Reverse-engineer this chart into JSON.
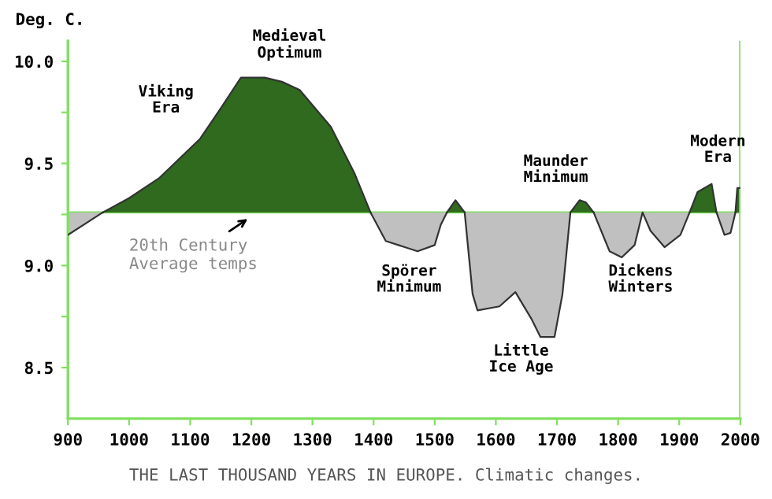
{
  "chart_data": {
    "type": "area",
    "ylabel": "Deg. C.",
    "x": [
      900,
      957,
      1000,
      1050,
      1116,
      1150,
      1183,
      1222,
      1250,
      1279,
      1330,
      1369,
      1395,
      1420,
      1472,
      1500,
      1510,
      1520,
      1534,
      1549,
      1562,
      1570,
      1606,
      1632,
      1658,
      1673,
      1696,
      1709,
      1722,
      1737,
      1747,
      1760,
      1786,
      1806,
      1827,
      1840,
      1853,
      1876,
      1902,
      1917,
      1930,
      1953,
      1961,
      1974,
      1984,
      1992,
      1995,
      2000
    ],
    "series": [
      {
        "color": "#2f6a1f",
        "values": [
          null,
          9.26,
          9.33,
          9.43,
          9.62,
          9.77,
          9.92,
          9.92,
          9.9,
          9.86,
          9.68,
          9.45,
          9.26,
          null,
          null,
          null,
          null,
          9.26,
          9.32,
          9.26,
          null,
          null,
          null,
          null,
          null,
          null,
          null,
          null,
          9.26,
          9.32,
          9.31,
          9.26,
          null,
          null,
          null,
          null,
          null,
          null,
          null,
          9.26,
          9.36,
          9.4,
          9.26,
          null,
          null,
          9.26,
          9.38,
          9.38
        ]
      },
      {
        "color": "#c0c0c0",
        "values": [
          9.15,
          9.26,
          null,
          null,
          null,
          null,
          null,
          null,
          null,
          null,
          null,
          null,
          9.26,
          9.12,
          9.07,
          9.1,
          9.2,
          9.26,
          null,
          9.26,
          8.86,
          8.78,
          8.8,
          8.87,
          8.74,
          8.65,
          8.65,
          8.86,
          9.26,
          null,
          null,
          9.26,
          9.07,
          9.04,
          9.1,
          9.26,
          9.17,
          9.09,
          9.15,
          9.26,
          null,
          null,
          9.26,
          9.15,
          9.16,
          9.26,
          null,
          null
        ]
      }
    ],
    "xlim": [
      900,
      2000
    ],
    "xticks": [
      900,
      1000,
      1100,
      1200,
      1300,
      1400,
      1500,
      1600,
      1700,
      1800,
      1900,
      2000
    ],
    "ylim": [
      8.25,
      10.1
    ],
    "yticks": [
      {
        "value": 8.5,
        "label": "8.5"
      },
      {
        "value": 8.75,
        "label": null
      },
      {
        "value": 9.0,
        "label": "9.0"
      },
      {
        "value": 9.25,
        "label": null
      },
      {
        "value": 9.5,
        "label": "9.5"
      },
      {
        "value": 9.75,
        "label": null
      },
      {
        "value": 10.0,
        "label": "10.0"
      }
    ],
    "ref_lines": [
      {
        "axis": "y",
        "value": 9.26,
        "color": "#80e060"
      },
      {
        "axis": "x",
        "value": 2000,
        "color": "#80e060"
      }
    ],
    "annotations": [
      "Viking\nEra",
      "Medieval\nOptimum",
      {
        "text": "20th Century\nAverage temps",
        "x": 1200,
        "y": 9.26
      },
      "Spörer\nMinimum",
      "Maunder\nMinimum",
      "Little\nIce Age",
      "Dickens\nWinters",
      "Modern\nEra",
      "THE LAST THOUSAND YEARS IN EUROPE. Climatic changes."
    ],
    "grid": false
  }
}
